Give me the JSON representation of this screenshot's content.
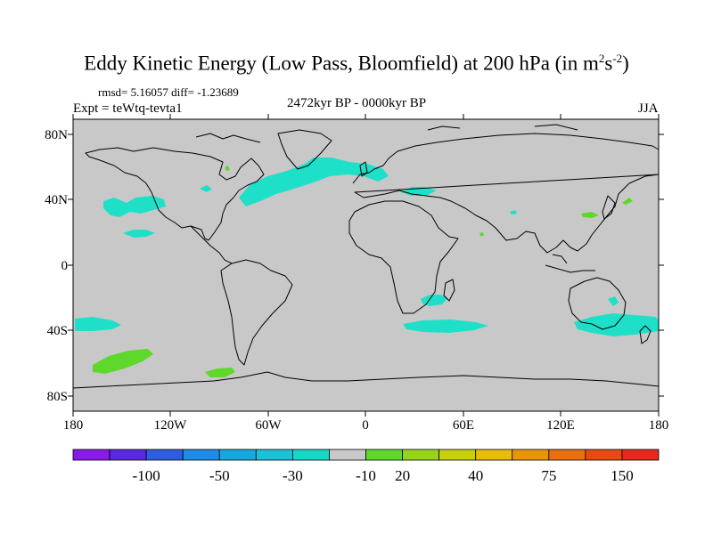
{
  "title_main": "Eddy Kinetic Energy (Low Pass, Bloomfield) at 200 hPa (in m",
  "title_sup1": "2",
  "title_mid": "s",
  "title_sup2": "-2",
  "title_end": ")",
  "stats": "rmsd= 5.16057 diff= -1.23689",
  "expt": "Expt = teWtq-tevta1",
  "period": "2472kyr BP - 0000kyr BP",
  "season": "JJA",
  "lat_labels": [
    "80N",
    "40N",
    "0",
    "40S",
    "80S"
  ],
  "lon_labels": [
    "180",
    "120W",
    "60W",
    "0",
    "60E",
    "120E",
    "180"
  ],
  "colorbar": {
    "colors": [
      "#8a1ae6",
      "#5a28e0",
      "#2e5ee0",
      "#1e8ce8",
      "#18a8e0",
      "#1ec0d8",
      "#18d8c8",
      "#c8c8c8",
      "#5ed82a",
      "#96d41c",
      "#c6d00c",
      "#e8bc08",
      "#e89608",
      "#e87010",
      "#e84a12",
      "#e8281c"
    ],
    "labels": [
      "-100",
      "-50",
      "-30",
      "-10",
      "20",
      "40",
      "75",
      "150"
    ],
    "label_after_index": [
      1,
      3,
      5,
      7,
      8,
      10,
      12,
      14
    ]
  },
  "colors": {
    "land_ocean": "#c8c8c8",
    "negative_band": "#1ee0c8",
    "positive_band": "#5ed82a"
  }
}
